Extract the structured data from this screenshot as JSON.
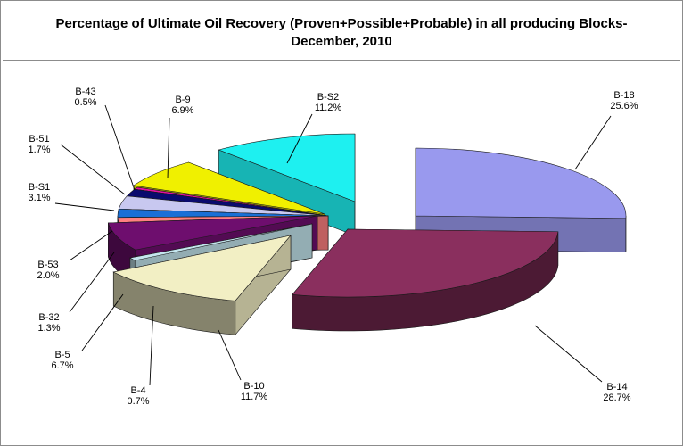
{
  "chart_data": {
    "type": "pie",
    "title_line1": "Percentage of  Ultimate Oil Recovery (Proven+Possible+Probable) in all producing Blocks-",
    "title_line2": "December, 2010",
    "slices": [
      {
        "name": "B-18",
        "value": 25.6,
        "label": "25.6%",
        "color": "#9999ee"
      },
      {
        "name": "B-14",
        "value": 28.7,
        "label": "28.7%",
        "color": "#8a2f5e"
      },
      {
        "name": "B-10",
        "value": 11.7,
        "label": "11.7%",
        "color": "#f2efc4"
      },
      {
        "name": "B-4",
        "value": 0.7,
        "label": "0.7%",
        "color": "#c4e6ee"
      },
      {
        "name": "B-5",
        "value": 6.7,
        "label": "6.7%",
        "color": "#6e0e6e"
      },
      {
        "name": "B-32",
        "value": 1.3,
        "label": "1.3%",
        "color": "#ff8080"
      },
      {
        "name": "B-53",
        "value": 2.0,
        "label": "2.0%",
        "color": "#1a6fd6"
      },
      {
        "name": "B-S1",
        "value": 3.1,
        "label": "3.1%",
        "color": "#c8c8f0"
      },
      {
        "name": "B-51",
        "value": 1.7,
        "label": "1.7%",
        "color": "#0a0a6e"
      },
      {
        "name": "B-43",
        "value": 0.5,
        "label": "0.5%",
        "color": "#e010a0"
      },
      {
        "name": "B-9",
        "value": 6.9,
        "label": "6.9%",
        "color": "#f0f000"
      },
      {
        "name": "B-S2",
        "value": 11.2,
        "label": "11.2%",
        "color": "#1ef0f0"
      }
    ]
  }
}
